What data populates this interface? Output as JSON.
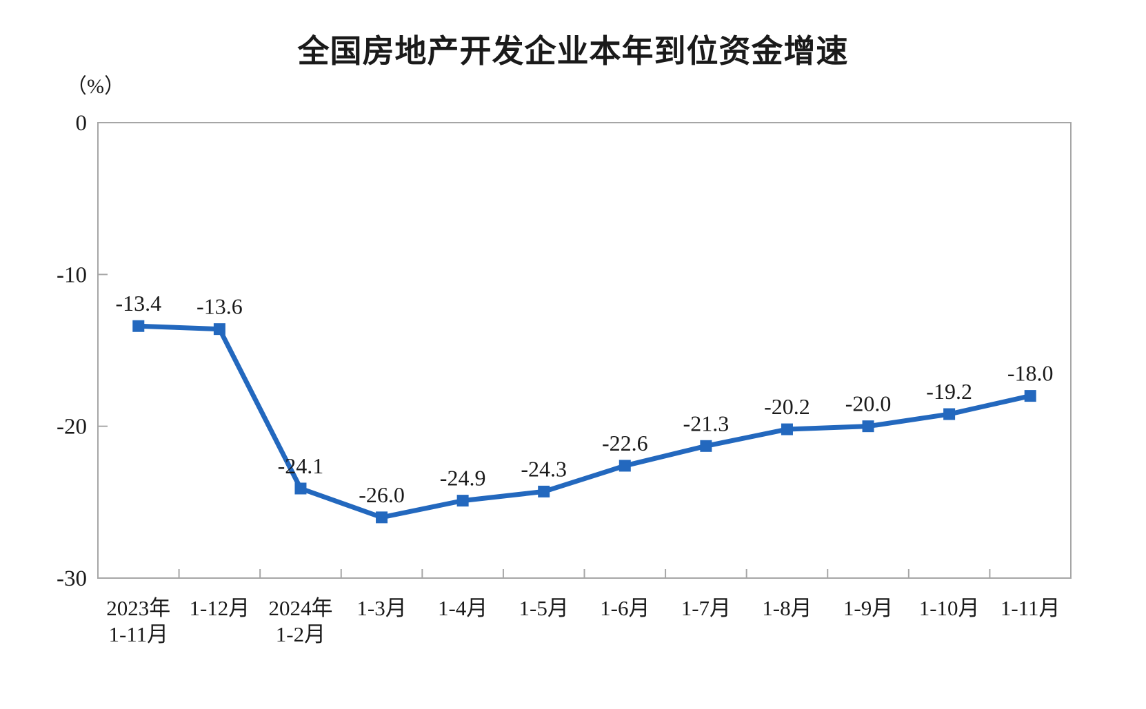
{
  "chart": {
    "title": "全国房地产开发企业本年到位资金增速",
    "unit_label": "（%）"
  },
  "chart_data": {
    "type": "line",
    "title": "全国房地产开发企业本年到位资金增速",
    "ylabel": "（%）",
    "xlabel": "",
    "categories": [
      [
        "2023年",
        "1-11月"
      ],
      [
        "1-12月"
      ],
      [
        "2024年",
        "1-2月"
      ],
      [
        "1-3月"
      ],
      [
        "1-4月"
      ],
      [
        "1-5月"
      ],
      [
        "1-6月"
      ],
      [
        "1-7月"
      ],
      [
        "1-8月"
      ],
      [
        "1-9月"
      ],
      [
        "1-10月"
      ],
      [
        "1-11月"
      ]
    ],
    "series": [
      {
        "name": "本年到位资金增速",
        "values": [
          -13.4,
          -13.6,
          -24.1,
          -26.0,
          -24.9,
          -24.3,
          -22.6,
          -21.3,
          -20.2,
          -20.0,
          -19.2,
          -18.0
        ],
        "data_labels": [
          "-13.4",
          "-13.6",
          "-24.1",
          "-26.0",
          "-24.9",
          "-24.3",
          "-22.6",
          "-21.3",
          "-20.2",
          "-20.0",
          "-19.2",
          "-18.0"
        ]
      }
    ],
    "y_ticks": [
      "0",
      "-10",
      "-20",
      "-30"
    ],
    "y_tick_values": [
      0,
      -10,
      -20,
      -30
    ],
    "ylim": [
      -30,
      0
    ],
    "grid": false,
    "legend": false,
    "marker": "square",
    "colors": {
      "line": "#2368BE",
      "marker": "#2368BE",
      "axis": "#A6A6A6",
      "text": "#1a1a1a"
    }
  }
}
